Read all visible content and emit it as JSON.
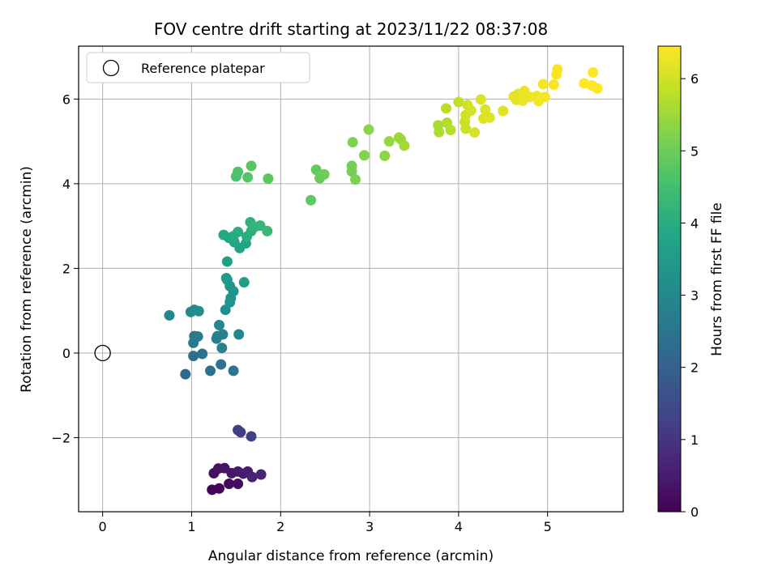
{
  "chart_data": {
    "type": "scatter",
    "title": "FOV centre drift starting at 2023/11/22 08:37:08",
    "xlabel": "Angular distance from reference (arcmin)",
    "ylabel": "Rotation from reference (arcmin)",
    "xlim": [
      -0.27,
      5.85
    ],
    "ylim": [
      -3.75,
      7.25
    ],
    "xticks": [
      0,
      1,
      2,
      3,
      4,
      5
    ],
    "yticks": [
      -2,
      0,
      2,
      4,
      6
    ],
    "grid": true,
    "legend": {
      "position": "top-left",
      "entries": [
        "Reference platepar"
      ]
    },
    "reference_point": {
      "x": 0,
      "y": 0,
      "label": "Reference platepar"
    },
    "colorbar": {
      "label": "Hours from first FF file",
      "min": 0,
      "max": 6.45,
      "ticks": [
        0,
        1,
        2,
        3,
        4,
        5,
        6
      ],
      "colormap": "viridis"
    },
    "points": [
      {
        "x": 1.23,
        "y": -3.23,
        "c": 0.05
      },
      {
        "x": 1.31,
        "y": -3.2,
        "c": 0.1
      },
      {
        "x": 1.42,
        "y": -3.09,
        "c": 0.15
      },
      {
        "x": 1.52,
        "y": -3.09,
        "c": 0.2
      },
      {
        "x": 1.25,
        "y": -2.84,
        "c": 0.25
      },
      {
        "x": 1.3,
        "y": -2.73,
        "c": 0.3
      },
      {
        "x": 1.37,
        "y": -2.72,
        "c": 0.35
      },
      {
        "x": 1.45,
        "y": -2.84,
        "c": 0.4
      },
      {
        "x": 1.52,
        "y": -2.8,
        "c": 0.45
      },
      {
        "x": 1.58,
        "y": -2.85,
        "c": 0.5
      },
      {
        "x": 1.63,
        "y": -2.8,
        "c": 0.55
      },
      {
        "x": 1.68,
        "y": -2.93,
        "c": 0.6
      },
      {
        "x": 1.78,
        "y": -2.87,
        "c": 0.65
      },
      {
        "x": 1.52,
        "y": -1.82,
        "c": 1.15
      },
      {
        "x": 1.55,
        "y": -1.87,
        "c": 1.2
      },
      {
        "x": 1.67,
        "y": -1.97,
        "c": 1.25
      },
      {
        "x": 0.93,
        "y": -0.5,
        "c": 2.2
      },
      {
        "x": 1.02,
        "y": -0.07,
        "c": 2.3
      },
      {
        "x": 1.12,
        "y": -0.02,
        "c": 2.35
      },
      {
        "x": 1.21,
        "y": -0.42,
        "c": 2.4
      },
      {
        "x": 1.33,
        "y": -0.27,
        "c": 2.45
      },
      {
        "x": 1.47,
        "y": -0.42,
        "c": 2.5
      },
      {
        "x": 1.02,
        "y": 0.24,
        "c": 2.55
      },
      {
        "x": 1.03,
        "y": 0.4,
        "c": 2.6
      },
      {
        "x": 1.07,
        "y": 0.39,
        "c": 2.65
      },
      {
        "x": 1.28,
        "y": 0.34,
        "c": 2.7
      },
      {
        "x": 1.29,
        "y": 0.4,
        "c": 2.75
      },
      {
        "x": 1.35,
        "y": 0.44,
        "c": 2.8
      },
      {
        "x": 1.34,
        "y": 0.12,
        "c": 2.85
      },
      {
        "x": 1.53,
        "y": 0.44,
        "c": 2.9
      },
      {
        "x": 1.31,
        "y": 0.66,
        "c": 2.95
      },
      {
        "x": 0.75,
        "y": 0.89,
        "c": 3.0
      },
      {
        "x": 0.99,
        "y": 0.97,
        "c": 3.05
      },
      {
        "x": 1.03,
        "y": 1.02,
        "c": 3.1
      },
      {
        "x": 1.08,
        "y": 0.99,
        "c": 3.15
      },
      {
        "x": 1.38,
        "y": 1.02,
        "c": 3.2
      },
      {
        "x": 1.43,
        "y": 1.2,
        "c": 3.25
      },
      {
        "x": 1.44,
        "y": 1.3,
        "c": 3.3
      },
      {
        "x": 1.47,
        "y": 1.46,
        "c": 3.35
      },
      {
        "x": 1.43,
        "y": 1.58,
        "c": 3.4
      },
      {
        "x": 1.4,
        "y": 1.73,
        "c": 3.45
      },
      {
        "x": 1.39,
        "y": 1.77,
        "c": 3.5
      },
      {
        "x": 1.59,
        "y": 1.67,
        "c": 3.55
      },
      {
        "x": 1.4,
        "y": 2.16,
        "c": 3.65
      },
      {
        "x": 1.54,
        "y": 2.48,
        "c": 3.7
      },
      {
        "x": 1.61,
        "y": 2.59,
        "c": 3.75
      },
      {
        "x": 1.48,
        "y": 2.62,
        "c": 3.8
      },
      {
        "x": 1.42,
        "y": 2.72,
        "c": 3.85
      },
      {
        "x": 1.36,
        "y": 2.79,
        "c": 3.9
      },
      {
        "x": 1.47,
        "y": 2.76,
        "c": 3.95
      },
      {
        "x": 1.52,
        "y": 2.86,
        "c": 4.0
      },
      {
        "x": 1.62,
        "y": 2.75,
        "c": 4.05
      },
      {
        "x": 1.67,
        "y": 2.88,
        "c": 4.1
      },
      {
        "x": 1.66,
        "y": 3.09,
        "c": 4.15
      },
      {
        "x": 1.71,
        "y": 2.98,
        "c": 4.2
      },
      {
        "x": 1.77,
        "y": 3.01,
        "c": 4.25
      },
      {
        "x": 1.85,
        "y": 2.88,
        "c": 4.3
      },
      {
        "x": 1.5,
        "y": 4.17,
        "c": 4.6
      },
      {
        "x": 1.52,
        "y": 4.28,
        "c": 4.65
      },
      {
        "x": 1.63,
        "y": 4.15,
        "c": 4.7
      },
      {
        "x": 1.67,
        "y": 4.42,
        "c": 4.75
      },
      {
        "x": 1.86,
        "y": 4.12,
        "c": 4.8
      },
      {
        "x": 2.34,
        "y": 3.61,
        "c": 4.85
      },
      {
        "x": 2.4,
        "y": 4.33,
        "c": 4.9
      },
      {
        "x": 2.44,
        "y": 4.13,
        "c": 4.95
      },
      {
        "x": 2.49,
        "y": 4.22,
        "c": 5.0
      },
      {
        "x": 2.8,
        "y": 4.42,
        "c": 5.05
      },
      {
        "x": 2.8,
        "y": 4.29,
        "c": 5.1
      },
      {
        "x": 2.84,
        "y": 4.1,
        "c": 5.15
      },
      {
        "x": 2.81,
        "y": 4.98,
        "c": 5.2
      },
      {
        "x": 2.94,
        "y": 4.67,
        "c": 5.25
      },
      {
        "x": 2.99,
        "y": 5.28,
        "c": 5.3
      },
      {
        "x": 3.17,
        "y": 4.66,
        "c": 5.35
      },
      {
        "x": 3.22,
        "y": 5.0,
        "c": 5.4
      },
      {
        "x": 3.33,
        "y": 5.09,
        "c": 5.45
      },
      {
        "x": 3.35,
        "y": 5.05,
        "c": 5.5
      },
      {
        "x": 3.39,
        "y": 4.9,
        "c": 5.55
      },
      {
        "x": 3.77,
        "y": 5.38,
        "c": 5.6
      },
      {
        "x": 3.78,
        "y": 5.22,
        "c": 5.65
      },
      {
        "x": 3.87,
        "y": 5.44,
        "c": 5.7
      },
      {
        "x": 3.91,
        "y": 5.27,
        "c": 5.75
      },
      {
        "x": 3.86,
        "y": 5.78,
        "c": 5.8
      },
      {
        "x": 4.0,
        "y": 5.93,
        "c": 5.85
      },
      {
        "x": 4.07,
        "y": 5.46,
        "c": 5.9
      },
      {
        "x": 4.08,
        "y": 5.3,
        "c": 5.95
      },
      {
        "x": 4.08,
        "y": 5.62,
        "c": 6.0
      },
      {
        "x": 4.1,
        "y": 5.86,
        "c": 6.0
      },
      {
        "x": 4.14,
        "y": 5.73,
        "c": 6.05
      },
      {
        "x": 4.18,
        "y": 5.21,
        "c": 6.05
      },
      {
        "x": 4.25,
        "y": 5.99,
        "c": 6.1
      },
      {
        "x": 4.28,
        "y": 5.54,
        "c": 6.1
      },
      {
        "x": 4.3,
        "y": 5.75,
        "c": 6.1
      },
      {
        "x": 4.35,
        "y": 5.56,
        "c": 6.15
      },
      {
        "x": 4.5,
        "y": 5.72,
        "c": 6.15
      },
      {
        "x": 4.62,
        "y": 6.06,
        "c": 6.2
      },
      {
        "x": 4.65,
        "y": 5.98,
        "c": 6.2
      },
      {
        "x": 4.67,
        "y": 6.12,
        "c": 6.2
      },
      {
        "x": 4.72,
        "y": 5.96,
        "c": 6.25
      },
      {
        "x": 4.74,
        "y": 6.19,
        "c": 6.25
      },
      {
        "x": 4.8,
        "y": 6.05,
        "c": 6.3
      },
      {
        "x": 4.88,
        "y": 6.07,
        "c": 6.3
      },
      {
        "x": 4.9,
        "y": 5.95,
        "c": 6.35
      },
      {
        "x": 4.95,
        "y": 6.35,
        "c": 6.35
      },
      {
        "x": 4.97,
        "y": 6.05,
        "c": 6.35
      },
      {
        "x": 5.07,
        "y": 6.34,
        "c": 6.4
      },
      {
        "x": 5.1,
        "y": 6.58,
        "c": 6.4
      },
      {
        "x": 5.11,
        "y": 6.7,
        "c": 6.4
      },
      {
        "x": 5.41,
        "y": 6.37,
        "c": 6.45
      },
      {
        "x": 5.5,
        "y": 6.32,
        "c": 6.45
      },
      {
        "x": 5.51,
        "y": 6.63,
        "c": 6.45
      },
      {
        "x": 5.56,
        "y": 6.25,
        "c": 6.45
      }
    ]
  }
}
